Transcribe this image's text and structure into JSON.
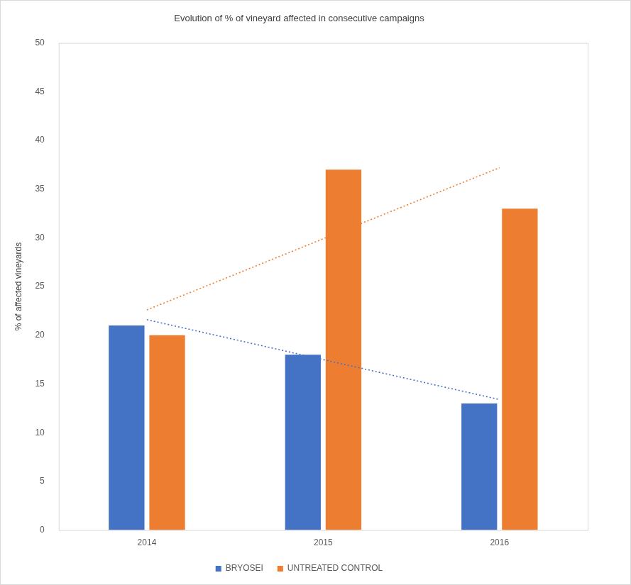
{
  "chart_data": {
    "type": "bar",
    "title": "Evolution of % of vineyard affected in consecutive campaigns",
    "y_label": "% of affected vineyards",
    "categories": [
      "2014",
      "2015",
      "2016"
    ],
    "series": [
      {
        "name": "BRYOSEI",
        "color": "#4472c4",
        "values": [
          21,
          18,
          13
        ]
      },
      {
        "name": "UNTREATED CONTROL",
        "color": "#ed7d31",
        "values": [
          20,
          37,
          33
        ]
      },
      {
        "type": "line",
        "line_style": "dotted",
        "color": "#4472c4",
        "values": [
          21.6,
          17.5,
          13.4
        ]
      },
      {
        "type": "line",
        "line_style": "dotted",
        "color": "#ed7d31",
        "values": [
          22.6,
          29.9,
          37.2
        ]
      }
    ],
    "ylim": [
      0,
      50
    ],
    "yticks": [
      0,
      5,
      10,
      15,
      20,
      25,
      30,
      35,
      40,
      45,
      50
    ],
    "grid": false,
    "legend": "bottom"
  }
}
